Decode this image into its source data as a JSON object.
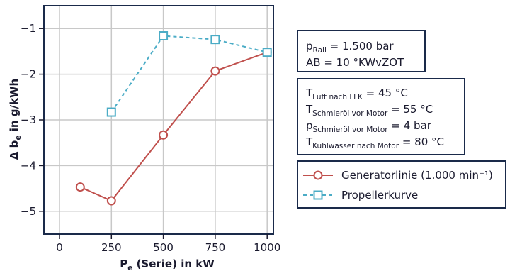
{
  "chart_data": {
    "type": "line",
    "xlabel": {
      "main": "P",
      "sub": "e",
      "rest": " (Serie) in kW"
    },
    "ylabel": {
      "main": "Δ b",
      "sub": "e",
      "rest": " in g/kWh"
    },
    "xlim": [
      -75,
      1030
    ],
    "ylim": [
      -5.5,
      -0.5
    ],
    "xticks": [
      0,
      250,
      500,
      750,
      1000
    ],
    "yticks": [
      -1,
      -2,
      -3,
      -4,
      -5
    ],
    "xtick_labels": [
      "0",
      "250",
      "500",
      "750",
      "1000"
    ],
    "ytick_labels": [
      "−1",
      "−2",
      "−3",
      "−4",
      "−5"
    ],
    "grid": true,
    "series": [
      {
        "name": "Generatorlinie (1.000 min⁻¹)",
        "marker": "circle",
        "style": "solid",
        "color": "#c0504d",
        "x": [
          100,
          250,
          500,
          750,
          1000
        ],
        "y": [
          -4.47,
          -4.77,
          -3.33,
          -1.93,
          -1.52
        ]
      },
      {
        "name": "Propellerkurve",
        "marker": "square",
        "style": "dashed",
        "color": "#4bacc6",
        "x": [
          250,
          500,
          750,
          1000
        ],
        "y": [
          -2.83,
          -1.16,
          -1.24,
          -1.52
        ]
      }
    ],
    "annotations": {
      "box1": [
        {
          "sym": "p",
          "sub": "Rail",
          "rest": " = 1.500 bar"
        },
        {
          "sym": "AB = 10 °KWvZOT",
          "sub": "",
          "rest": ""
        }
      ],
      "box2": [
        {
          "sym": "T",
          "sub": "Luft nach LLK",
          "rest": " = 45 °C"
        },
        {
          "sym": "T",
          "sub": "Schmieröl vor Motor",
          "rest": " = 55 °C"
        },
        {
          "sym": "p",
          "sub": "Schmieröl vor Motor",
          "rest": " = 4 bar"
        },
        {
          "sym": "T",
          "sub": "Kühlwasser nach Motor",
          "rest": " = 80 °C"
        }
      ]
    },
    "colors": {
      "axis": "#1a1a2e",
      "grid": "#c8c8c8",
      "frame": "#1a2a4a"
    }
  }
}
